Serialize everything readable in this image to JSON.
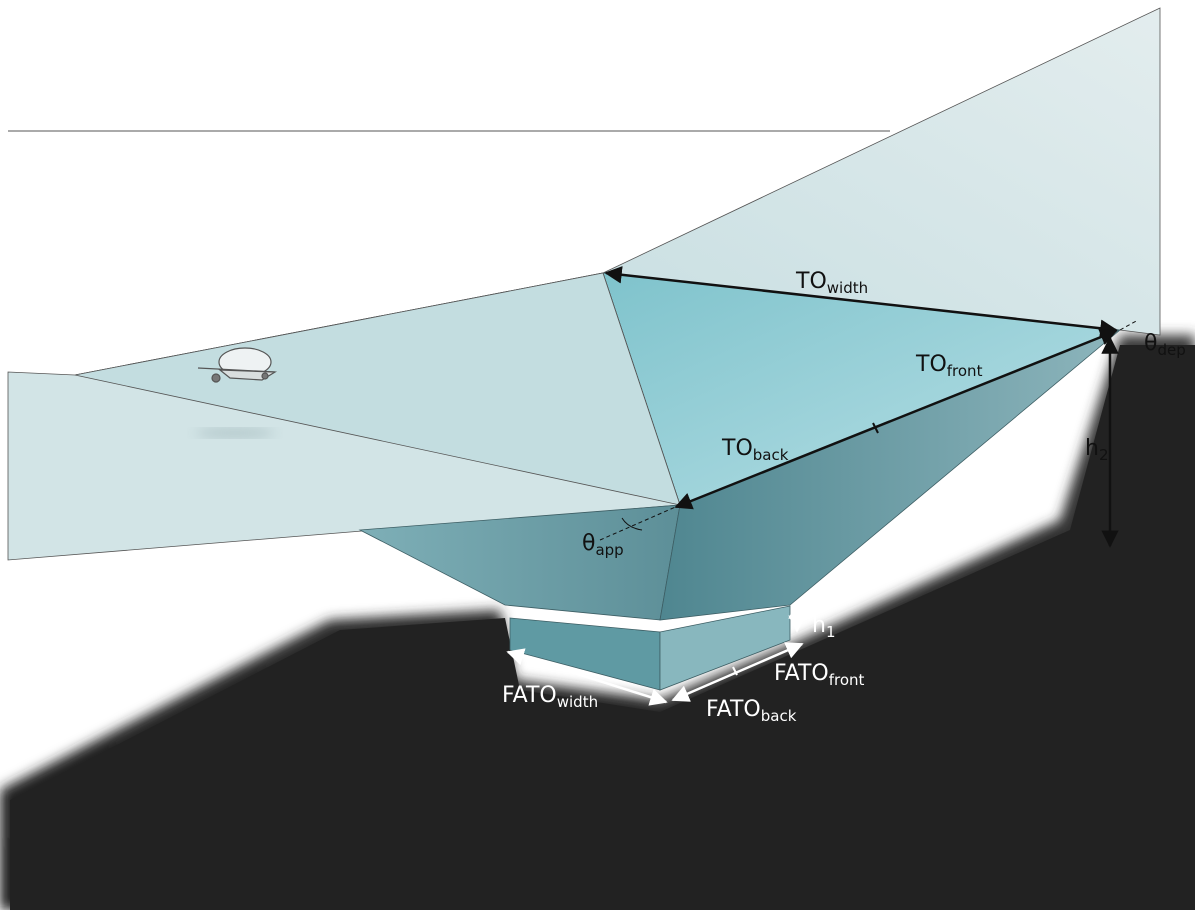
{
  "labels": {
    "to_width": {
      "main": "TO",
      "sub": "width"
    },
    "to_front": {
      "main": "TO",
      "sub": "front"
    },
    "to_back": {
      "main": "TO",
      "sub": "back"
    },
    "theta_dep": {
      "main": "θ",
      "sub": "dep"
    },
    "theta_app": {
      "main": "θ",
      "sub": "app"
    },
    "h2": {
      "main": "h",
      "sub": "2"
    },
    "h1": {
      "main": "h",
      "sub": "1"
    },
    "fato_width": {
      "main": "FATO",
      "sub": "width"
    },
    "fato_front": {
      "main": "FATO",
      "sub": "front"
    },
    "fato_back": {
      "main": "FATO",
      "sub": "back"
    }
  },
  "colors": {
    "surface_light": "#d9e6e7",
    "surface_mid": "#bcd9dd",
    "basin_light": "#a8d6dd",
    "basin_dark": "#6fa8b2",
    "ground_shadow": "#222222",
    "arrow_black": "#111111",
    "arrow_white": "#ffffff"
  }
}
